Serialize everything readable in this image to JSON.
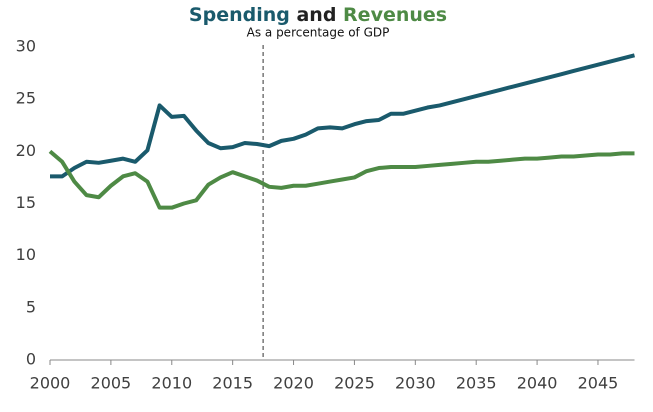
{
  "chart_data": {
    "type": "line",
    "title": [
      {
        "text": "Spending",
        "color": "#1a5a6c"
      },
      {
        "text": "and",
        "color": "#222222"
      },
      {
        "text": "Revenues",
        "color": "#4e8a45"
      }
    ],
    "subtitle": "As a percentage of GDP",
    "x": [
      2000,
      2001,
      2002,
      2003,
      2004,
      2005,
      2006,
      2007,
      2008,
      2009,
      2010,
      2011,
      2012,
      2013,
      2014,
      2015,
      2016,
      2017,
      2018,
      2019,
      2020,
      2021,
      2022,
      2023,
      2024,
      2025,
      2026,
      2027,
      2028,
      2029,
      2030,
      2031,
      2032,
      2033,
      2034,
      2035,
      2036,
      2037,
      2038,
      2039,
      2040,
      2041,
      2042,
      2043,
      2044,
      2045,
      2046,
      2047,
      2048
    ],
    "series": [
      {
        "name": "Spending",
        "color": "#1a5a6c",
        "values": [
          17.6,
          17.6,
          18.4,
          19.0,
          18.9,
          19.1,
          19.3,
          19.0,
          20.1,
          24.4,
          23.3,
          23.4,
          22.0,
          20.8,
          20.3,
          20.4,
          20.8,
          20.7,
          20.5,
          21.0,
          21.2,
          21.6,
          22.2,
          22.3,
          22.2,
          22.6,
          22.9,
          23.0,
          23.6,
          23.6,
          23.9,
          24.2,
          24.4,
          24.7,
          25.0,
          25.3,
          25.6,
          25.9,
          26.2,
          26.5,
          26.8,
          27.1,
          27.4,
          27.7,
          28.0,
          28.3,
          28.6,
          28.9,
          29.2
        ]
      },
      {
        "name": "Revenues",
        "color": "#4e8a45",
        "values": [
          20.0,
          19.0,
          17.1,
          15.8,
          15.6,
          16.7,
          17.6,
          17.9,
          17.1,
          14.6,
          14.6,
          15.0,
          15.3,
          16.8,
          17.5,
          18.0,
          17.6,
          17.2,
          16.6,
          16.5,
          16.7,
          16.7,
          16.9,
          17.1,
          17.3,
          17.5,
          18.1,
          18.4,
          18.5,
          18.5,
          18.5,
          18.6,
          18.7,
          18.8,
          18.9,
          19.0,
          19.0,
          19.1,
          19.2,
          19.3,
          19.3,
          19.4,
          19.5,
          19.5,
          19.6,
          19.7,
          19.7,
          19.8,
          19.8
        ]
      }
    ],
    "xlim": [
      2000,
      2048
    ],
    "ylim": [
      0,
      30
    ],
    "xticks": [
      2000,
      2005,
      2010,
      2015,
      2020,
      2025,
      2030,
      2035,
      2040,
      2045
    ],
    "yticks": [
      0,
      5,
      10,
      15,
      20,
      25,
      30
    ],
    "projection_start": 2017.5
  }
}
